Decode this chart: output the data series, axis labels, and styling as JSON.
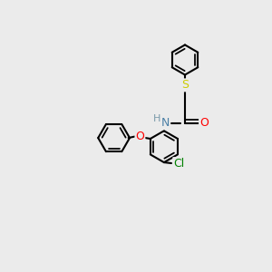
{
  "bg_color": "#ebebeb",
  "bond_color": "#000000",
  "bond_lw": 1.5,
  "atom_colors": {
    "N": "#4a7fa5",
    "O": "#ff0000",
    "S": "#cccc00",
    "Cl": "#008000",
    "H": "#7a9aaa"
  },
  "font_size": 9,
  "font_size_small": 8
}
